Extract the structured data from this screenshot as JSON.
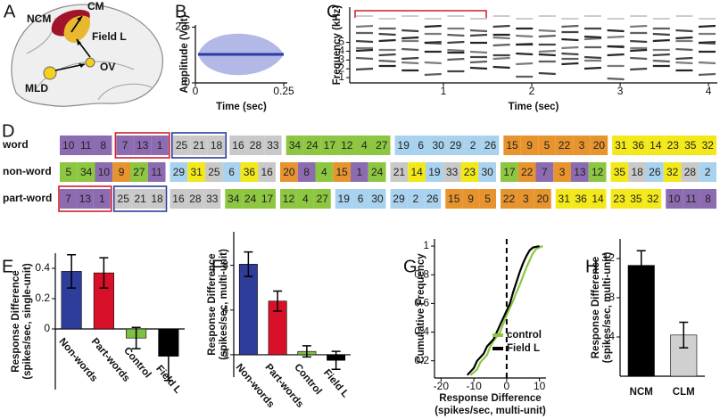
{
  "diagram": {
    "panel": "A",
    "labels": {
      "ncm": "NCM",
      "cm": "CM",
      "field_l": "Field L",
      "ov": "OV",
      "mld": "MLD"
    }
  },
  "sequence_table": {
    "panel": "D",
    "rows": [
      {
        "label": "word",
        "groups": [
          {
            "values": [
              10,
              11,
              8
            ],
            "color": "#8c6bb1"
          },
          {
            "values": [
              7,
              13,
              1
            ],
            "color": "#8c6bb1",
            "outline": "#d0202a"
          },
          {
            "values": [
              25,
              21,
              18
            ],
            "color": "#c9c9c9",
            "outline": "#2a3d9a"
          },
          {
            "values": [
              16,
              28,
              33
            ],
            "color": "#c9c9c9"
          },
          {
            "values": [
              34,
              24,
              17,
              12,
              4,
              27
            ],
            "color": "#8dc641"
          },
          {
            "values": [
              19,
              6,
              30,
              29,
              2,
              26
            ],
            "color": "#a9d2ee"
          },
          {
            "values": [
              15,
              9,
              5,
              22,
              3,
              20
            ],
            "color": "#e8942e"
          },
          {
            "values": [
              31,
              36,
              14,
              23,
              35,
              32
            ],
            "color": "#f3e91a"
          }
        ]
      },
      {
        "label": "non-word",
        "groups": [
          {
            "values": [
              5,
              34,
              10,
              9,
              27,
              11
            ],
            "colors": [
              "#8dc641",
              "#8dc641",
              "#8c6bb1",
              "#e8942e",
              "#8dc641",
              "#8c6bb1"
            ]
          },
          {
            "values": [
              29,
              31,
              25,
              6,
              36,
              16
            ],
            "colors": [
              "#a9d2ee",
              "#f3e91a",
              "#c9c9c9",
              "#a9d2ee",
              "#f3e91a",
              "#c9c9c9"
            ]
          },
          {
            "values": [
              20,
              8,
              4,
              15,
              1,
              24
            ],
            "colors": [
              "#e8942e",
              "#8c6bb1",
              "#8dc641",
              "#e8942e",
              "#8c6bb1",
              "#8dc641"
            ]
          },
          {
            "values": [
              21,
              14,
              19,
              33,
              23,
              30
            ],
            "colors": [
              "#c9c9c9",
              "#f3e91a",
              "#a9d2ee",
              "#c9c9c9",
              "#f3e91a",
              "#a9d2ee"
            ]
          },
          {
            "values": [
              17,
              22,
              7,
              3,
              13,
              12
            ],
            "colors": [
              "#8dc641",
              "#e8942e",
              "#8c6bb1",
              "#e8942e",
              "#8c6bb1",
              "#8dc641"
            ]
          },
          {
            "values": [
              35,
              18,
              26,
              32,
              28,
              2
            ],
            "colors": [
              "#f3e91a",
              "#c9c9c9",
              "#a9d2ee",
              "#f3e91a",
              "#c9c9c9",
              "#a9d2ee"
            ]
          }
        ]
      },
      {
        "label": "part-word",
        "groups": [
          {
            "values": [
              7,
              13,
              1
            ],
            "color": "#8c6bb1",
            "outline": "#d0202a"
          },
          {
            "values": [
              25,
              21,
              18
            ],
            "color": "#c9c9c9",
            "outline": "#2a3d9a"
          },
          {
            "values": [
              16,
              28,
              33
            ],
            "color": "#c9c9c9"
          },
          {
            "values": [
              34,
              24,
              17
            ],
            "color": "#8dc641"
          },
          {
            "values": [
              12,
              4,
              27
            ],
            "color": "#8dc641"
          },
          {
            "values": [
              19,
              6,
              30
            ],
            "color": "#a9d2ee"
          },
          {
            "values": [
              29,
              2,
              26
            ],
            "color": "#a9d2ee"
          },
          {
            "values": [
              15,
              9,
              5
            ],
            "color": "#e8942e"
          },
          {
            "values": [
              22,
              3,
              20
            ],
            "color": "#e8942e"
          },
          {
            "values": [
              31,
              36,
              14
            ],
            "color": "#f3e91a"
          },
          {
            "values": [
              23,
              35,
              32
            ],
            "color": "#f3e91a"
          },
          {
            "values": [
              10,
              11,
              8
            ],
            "color": "#8c6bb1"
          }
        ]
      }
    ]
  },
  "chart_data": [
    {
      "panel": "B",
      "type": "waveform",
      "ylabel": "Amplitude (Volt)",
      "xlabel": "Time (sec)",
      "xlim": [
        0,
        0.26
      ],
      "ylim": [
        0,
        2.6
      ],
      "xticks": [
        0,
        0.25
      ],
      "yticks": [
        0,
        2.5
      ],
      "color": "#3b4fc4"
    },
    {
      "panel": "C",
      "type": "spectrogram",
      "ylabel": "Frequency (kHz)",
      "xlabel": "Time (sec)",
      "xlim": [
        -0.06,
        4.1
      ],
      "ylim": [
        0.4,
        9
      ],
      "xticks": [
        1,
        2,
        3,
        4
      ],
      "yticks": [
        1,
        2,
        3,
        4,
        5
      ]
    },
    {
      "panel": "E",
      "type": "bar",
      "ylabel": [
        "Response Difference",
        "(spikes/sec, single-unit)"
      ],
      "categories": [
        "Non-words",
        "Part-words",
        "Control",
        "Field L"
      ],
      "values": [
        0.38,
        0.37,
        -0.06,
        -0.18
      ],
      "errors": [
        0.11,
        0.1,
        0.07,
        0.16
      ],
      "colors": [
        "#2e3d9a",
        "#d9102a",
        "#7ec043",
        "#000000"
      ],
      "ylim": [
        -0.4,
        0.5
      ],
      "yticks": [
        0,
        0.2,
        0.4
      ],
      "rotate_labels": true
    },
    {
      "panel": "F",
      "type": "bar",
      "ylabel": [
        "Response Difference",
        "(spikes/sec, multi-unit)"
      ],
      "categories": [
        "Non-words",
        "Part-words",
        "Control",
        "Field L"
      ],
      "values": [
        8.1,
        4.8,
        0.3,
        -0.5
      ],
      "errors": [
        1.1,
        0.9,
        0.5,
        0.8
      ],
      "colors": [
        "#2e3d9a",
        "#d9102a",
        "#7ec043",
        "#000000"
      ],
      "ylim": [
        -2,
        11
      ],
      "yticks": [
        0,
        4,
        8
      ],
      "rotate_labels": true
    },
    {
      "panel": "G",
      "type": "line",
      "ylabel": "Cumulative Frequency",
      "xlabel": [
        "Response Difference",
        "(spikes/sec, multi-unit)"
      ],
      "xlim": [
        -22,
        12
      ],
      "ylim": [
        0.08,
        1.05
      ],
      "xticks": [
        -20,
        -10,
        0,
        10
      ],
      "yticks": [
        0.2,
        0.4,
        0.6,
        0.8,
        1
      ],
      "vline": 0,
      "legend": "lower right",
      "series": [
        {
          "name": "control",
          "color": "#8dc641",
          "x": [
            -11,
            -9,
            -8,
            -6,
            -5,
            -4,
            -2,
            -1,
            0,
            1,
            2,
            3,
            4,
            5,
            6,
            7,
            8,
            9,
            11
          ],
          "values": [
            0.1,
            0.14,
            0.19,
            0.24,
            0.3,
            0.34,
            0.4,
            0.46,
            0.52,
            0.57,
            0.62,
            0.68,
            0.73,
            0.79,
            0.85,
            0.9,
            0.95,
            0.98,
            1
          ]
        },
        {
          "name": "Field L",
          "color": "#000000",
          "x": [
            -12,
            -10,
            -9,
            -7,
            -6,
            -4,
            -3,
            -2,
            -1,
            0,
            1,
            2,
            3,
            4,
            5,
            6,
            7,
            8,
            10
          ],
          "values": [
            0.1,
            0.15,
            0.2,
            0.25,
            0.3,
            0.35,
            0.4,
            0.45,
            0.5,
            0.55,
            0.6,
            0.68,
            0.75,
            0.82,
            0.88,
            0.93,
            0.97,
            0.99,
            1
          ]
        }
      ]
    },
    {
      "panel": "H",
      "type": "bar",
      "ylabel": [
        "Response Difference",
        "(spikes/sec, multi-unit)"
      ],
      "categories": [
        "NCM",
        "CLM"
      ],
      "values": [
        11.3,
        4.2
      ],
      "errors": [
        1.5,
        1.3
      ],
      "colors": [
        "#000000",
        "#d0d0d0"
      ],
      "ylim": [
        0,
        14
      ],
      "yticks": [
        4,
        8,
        12
      ],
      "rotate_labels": false
    }
  ]
}
